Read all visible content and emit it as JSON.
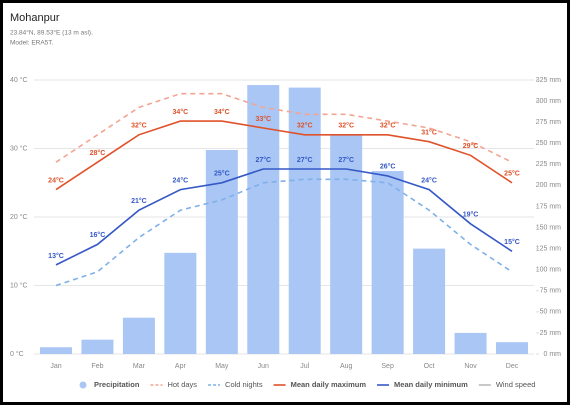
{
  "chart_data": {
    "type": "combo",
    "title": "Mohanpur",
    "subtitle": "23.84°N, 89.53°E (13 m asl).",
    "model": "Model: ERA5T.",
    "categories": [
      "Jan",
      "Feb",
      "Mar",
      "Apr",
      "May",
      "Jun",
      "Jul",
      "Aug",
      "Sep",
      "Oct",
      "Nov",
      "Dec"
    ],
    "ylim": [
      0,
      40
    ],
    "yticks": [
      {
        "value": 0,
        "label": "0 °C"
      },
      {
        "value": 10,
        "label": "10 °C"
      },
      {
        "value": 20,
        "label": "20 °C"
      },
      {
        "value": 30,
        "label": "30 °C"
      },
      {
        "value": 40,
        "label": "40 °C"
      }
    ],
    "y2lim": [
      0,
      325
    ],
    "y2ticks": [
      {
        "value": 0,
        "label": "0 mm"
      },
      {
        "value": 25,
        "label": "25 mm"
      },
      {
        "value": 50,
        "label": "50 mm"
      },
      {
        "value": 75,
        "label": "75 mm"
      },
      {
        "value": 100,
        "label": "100 mm"
      },
      {
        "value": 125,
        "label": "125 mm"
      },
      {
        "value": 150,
        "label": "150 mm"
      },
      {
        "value": 175,
        "label": "175 mm"
      },
      {
        "value": 200,
        "label": "200 mm"
      },
      {
        "value": 225,
        "label": "225 mm"
      },
      {
        "value": 250,
        "label": "250 mm"
      },
      {
        "value": 275,
        "label": "275 mm"
      },
      {
        "value": 300,
        "label": "300 mm"
      },
      {
        "value": 325,
        "label": "325 mm"
      }
    ],
    "grid": true,
    "legend": "bottom",
    "series": [
      {
        "name": "Precipitation",
        "type": "bar",
        "axis": "y2",
        "color": "#a9c6f5",
        "values": [
          8,
          17,
          43,
          120,
          242,
          319,
          316,
          260,
          217,
          125,
          25,
          14
        ]
      },
      {
        "name": "Hot days",
        "type": "line",
        "dashed": true,
        "color": "#f2a593",
        "values": [
          28,
          32,
          36,
          38,
          38,
          36,
          35,
          35,
          34,
          33,
          31,
          28
        ]
      },
      {
        "name": "Cold nights",
        "type": "line",
        "dashed": true,
        "color": "#7fb0e8",
        "values": [
          10,
          12,
          17,
          21,
          22.5,
          25,
          25.5,
          25.5,
          25,
          21,
          16,
          12
        ]
      },
      {
        "name": "Mean daily maximum",
        "type": "line",
        "dashed": false,
        "color": "#e0522a",
        "values": [
          24,
          28,
          32,
          34,
          34,
          33,
          32,
          32,
          32,
          31,
          29,
          25
        ],
        "value_labels": [
          "24°C",
          "28°C",
          "32°C",
          "34°C",
          "34°C",
          "33°C",
          "32°C",
          "32°C",
          "32°C",
          "31°C",
          "29°C",
          "25°C"
        ]
      },
      {
        "name": "Mean daily minimum",
        "type": "line",
        "dashed": false,
        "color": "#3558c6",
        "values": [
          13,
          16,
          21,
          24,
          25,
          27,
          27,
          27,
          26,
          24,
          19,
          15
        ],
        "value_labels": [
          "13°C",
          "16°C",
          "21°C",
          "24°C",
          "25°C",
          "27°C",
          "27°C",
          "27°C",
          "26°C",
          "24°C",
          "19°C",
          "15°C"
        ]
      }
    ],
    "hidden_series": [
      {
        "name": "Wind speed",
        "color": "#bbbbbb"
      }
    ]
  }
}
